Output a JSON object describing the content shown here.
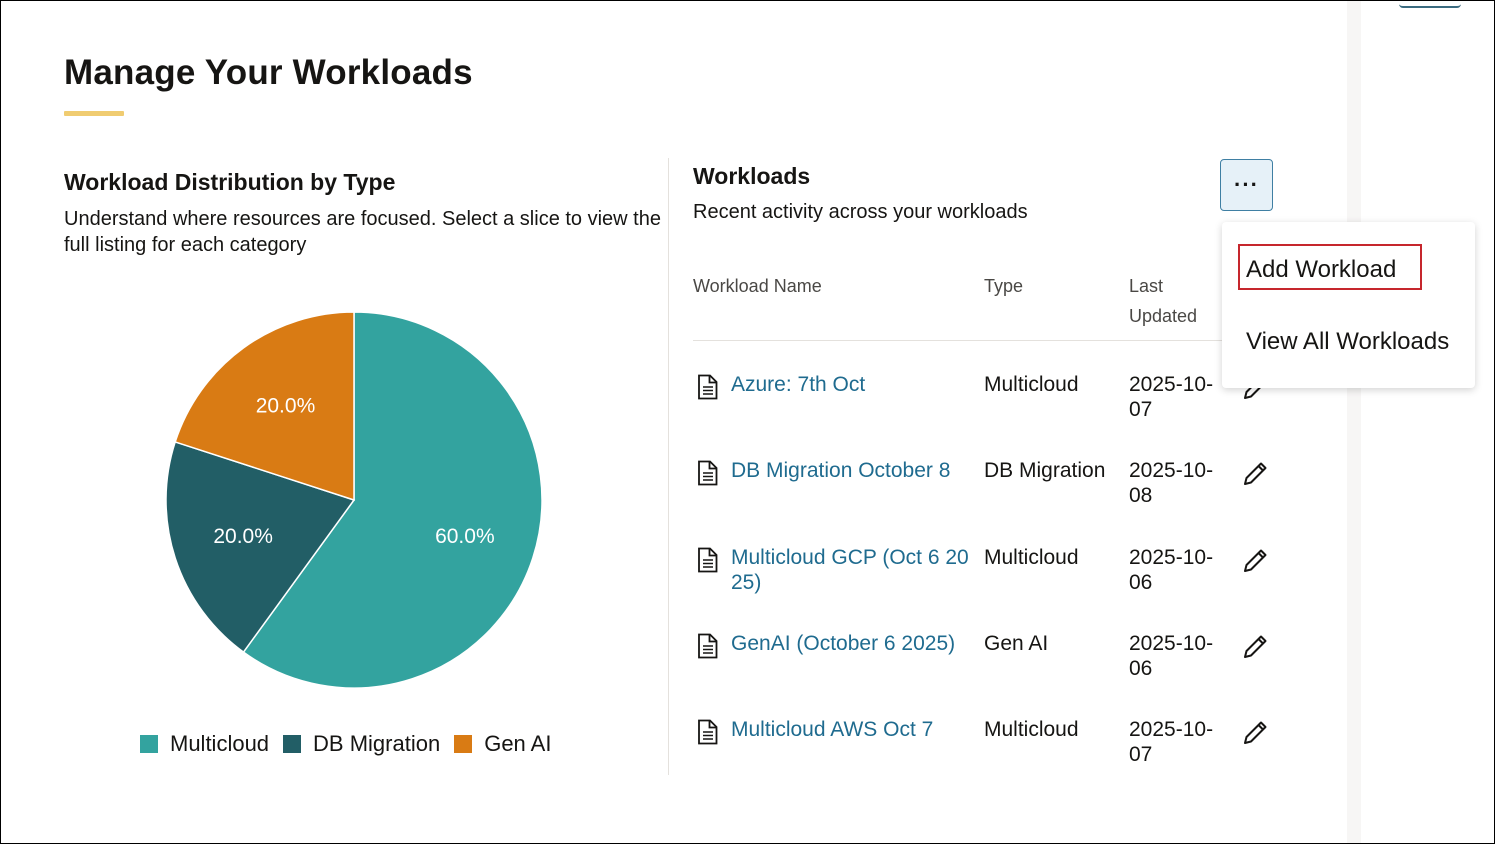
{
  "page": {
    "title": "Manage Your Workloads",
    "accent_color": "#f0cc71"
  },
  "distribution": {
    "title": "Workload Distribution by Type",
    "description": "Understand where resources are focused. Select a slice to view the full listing for each category"
  },
  "chart_data": {
    "type": "pie",
    "categories": [
      "Multicloud",
      "DB Migration",
      "Gen AI"
    ],
    "values": [
      60.0,
      20.0,
      20.0
    ],
    "labels": [
      "60.0%",
      "20.0%",
      "20.0%"
    ],
    "colors": [
      "#33a39f",
      "#225e66",
      "#d97b14"
    ],
    "legend_position": "bottom",
    "title": "",
    "start_angle": "12 o'clock, clockwise"
  },
  "workloads": {
    "title": "Workloads",
    "subtitle": "Recent activity across your workloads",
    "more_button_label": "···",
    "columns": [
      "Workload Name",
      "Type",
      "Last Updated"
    ],
    "rows": [
      {
        "name": "Azure: 7th Oct",
        "type": "Multicloud",
        "updated": "2025-10-07"
      },
      {
        "name": "DB Migration October 8",
        "type": "DB Migration",
        "updated": "2025-10-08"
      },
      {
        "name": "Multicloud GCP (Oct 6 2025)",
        "type": "Multicloud",
        "updated": "2025-10-06"
      },
      {
        "name": "GenAI (October 6 2025)",
        "type": "Gen AI",
        "updated": "2025-10-06"
      },
      {
        "name": "Multicloud AWS Oct 7",
        "type": "Multicloud",
        "updated": "2025-10-07"
      }
    ],
    "row_icon": "document-icon",
    "action_icon": "pencil-edit-icon",
    "link_color": "#1f6b8f"
  },
  "menu": {
    "items": [
      "Add Workload",
      "View All Workloads"
    ],
    "highlighted_item": "Add Workload",
    "highlight_color": "#c6262d"
  }
}
